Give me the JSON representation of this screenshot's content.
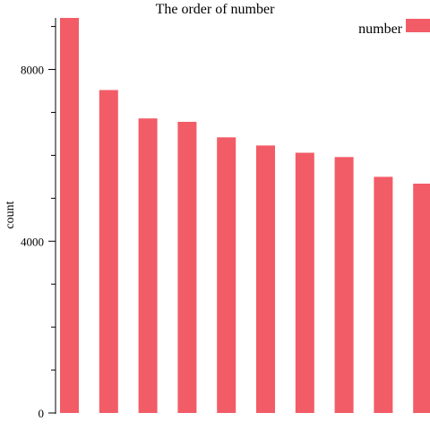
{
  "chart_data": {
    "type": "bar",
    "title": "The order of number",
    "xlabel": "",
    "ylabel": "count",
    "ylim": [
      0,
      9200
    ],
    "yticks_labeled": [
      0,
      4000,
      8000
    ],
    "yticks_minor_step": 1000,
    "legend": {
      "position": "top-right",
      "entries": [
        "number"
      ]
    },
    "colors": {
      "bar": "#f25c66"
    },
    "grid": false,
    "categories": [
      "",
      "",
      "",
      "",
      "",
      "",
      "",
      "",
      "",
      ""
    ],
    "series": [
      {
        "name": "number",
        "values": [
          9200,
          7520,
          6860,
          6780,
          6420,
          6230,
          6060,
          5960,
          5500,
          5340
        ]
      }
    ]
  }
}
